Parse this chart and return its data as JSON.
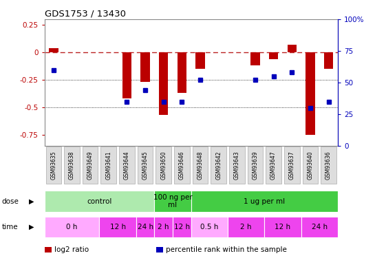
{
  "title": "GDS1753 / 13430",
  "samples": [
    "GSM93635",
    "GSM93638",
    "GSM93649",
    "GSM93641",
    "GSM93644",
    "GSM93645",
    "GSM93650",
    "GSM93646",
    "GSM93648",
    "GSM93642",
    "GSM93643",
    "GSM93639",
    "GSM93647",
    "GSM93637",
    "GSM93640",
    "GSM93636"
  ],
  "log2_ratio": [
    0.04,
    0.0,
    0.0,
    0.0,
    -0.42,
    -0.27,
    -0.57,
    -0.37,
    -0.15,
    0.0,
    0.0,
    -0.12,
    -0.06,
    0.07,
    -0.75,
    -0.15
  ],
  "pct_rank": [
    60,
    0,
    0,
    0,
    35,
    44,
    35,
    35,
    52,
    0,
    0,
    52,
    55,
    58,
    30,
    35
  ],
  "dose_groups": [
    {
      "label": "control",
      "start": 0,
      "end": 6,
      "color": "#AEEAAE"
    },
    {
      "label": "100 ng per\nml",
      "start": 6,
      "end": 8,
      "color": "#44CC44"
    },
    {
      "label": "1 ug per ml",
      "start": 8,
      "end": 16,
      "color": "#44CC44"
    }
  ],
  "time_groups": [
    {
      "label": "0 h",
      "start": 0,
      "end": 3,
      "color": "#FFAAFF"
    },
    {
      "label": "12 h",
      "start": 3,
      "end": 5,
      "color": "#EE44EE"
    },
    {
      "label": "24 h",
      "start": 5,
      "end": 6,
      "color": "#EE44EE"
    },
    {
      "label": "2 h",
      "start": 6,
      "end": 7,
      "color": "#EE44EE"
    },
    {
      "label": "12 h",
      "start": 7,
      "end": 8,
      "color": "#EE44EE"
    },
    {
      "label": "0.5 h",
      "start": 8,
      "end": 10,
      "color": "#FFAAFF"
    },
    {
      "label": "2 h",
      "start": 10,
      "end": 12,
      "color": "#EE44EE"
    },
    {
      "label": "12 h",
      "start": 12,
      "end": 14,
      "color": "#EE44EE"
    },
    {
      "label": "24 h",
      "start": 14,
      "end": 16,
      "color": "#EE44EE"
    }
  ],
  "bar_color": "#BB0000",
  "dot_color": "#0000BB",
  "ref_line_color": "#BB2222",
  "ylim_left": [
    -0.85,
    0.3
  ],
  "ylim_right": [
    0,
    100
  ],
  "yticks_left": [
    -0.75,
    -0.5,
    -0.25,
    0,
    0.25
  ],
  "yticks_right": [
    0,
    25,
    50,
    75,
    100
  ],
  "grid_dotted_vals": [
    -0.25,
    -0.5
  ],
  "legend_items": [
    {
      "label": "log2 ratio",
      "color": "#BB0000"
    },
    {
      "label": "percentile rank within the sample",
      "color": "#0000BB"
    }
  ],
  "label_box_color": "#DDDDDD",
  "label_box_edge": "#AAAAAA"
}
